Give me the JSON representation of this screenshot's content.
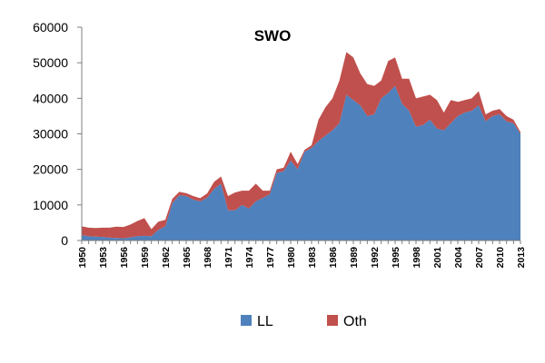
{
  "chart_data": {
    "type": "area",
    "stacked": true,
    "title": "SWO",
    "xlabel": "",
    "ylabel": "",
    "ylim": [
      0,
      60000
    ],
    "yticks": [
      0,
      10000,
      20000,
      30000,
      40000,
      50000,
      60000
    ],
    "ytick_labels": [
      "0",
      "10000",
      "20000",
      "30000",
      "40000",
      "50000",
      "60000"
    ],
    "xlim": [
      1950,
      2013
    ],
    "xticks": [
      1950,
      1953,
      1956,
      1959,
      1962,
      1965,
      1968,
      1971,
      1974,
      1977,
      1980,
      1983,
      1986,
      1989,
      1992,
      1995,
      1998,
      2001,
      2004,
      2007,
      2010,
      2013
    ],
    "xtick_labels": [
      "1950",
      "1953",
      "1956",
      "1959",
      "1962",
      "1965",
      "1968",
      "1971",
      "1974",
      "1977",
      "1980",
      "1983",
      "1986",
      "1989",
      "1992",
      "1995",
      "1998",
      "2001",
      "2004",
      "2007",
      "2010",
      "2013"
    ],
    "grid": false,
    "legend_position": "bottom",
    "x": [
      1950,
      1951,
      1952,
      1953,
      1954,
      1955,
      1956,
      1957,
      1958,
      1959,
      1960,
      1961,
      1962,
      1963,
      1964,
      1965,
      1966,
      1967,
      1968,
      1969,
      1970,
      1971,
      1972,
      1973,
      1974,
      1975,
      1976,
      1977,
      1978,
      1979,
      1980,
      1981,
      1982,
      1983,
      1984,
      1985,
      1986,
      1987,
      1988,
      1989,
      1990,
      1991,
      1992,
      1993,
      1994,
      1995,
      1996,
      1997,
      1998,
      1999,
      2000,
      2001,
      2002,
      2003,
      2004,
      2005,
      2006,
      2007,
      2008,
      2009,
      2010,
      2011,
      2012,
      2013
    ],
    "series": [
      {
        "name": "LL",
        "color": "#4f81bd",
        "values": [
          1500,
          1200,
          1100,
          1000,
          800,
          700,
          600,
          900,
          1200,
          1300,
          1200,
          3000,
          4000,
          10500,
          12700,
          12500,
          11500,
          11000,
          12000,
          14500,
          16000,
          8500,
          8500,
          10000,
          9000,
          11000,
          12000,
          13000,
          19000,
          19500,
          22500,
          20000,
          25000,
          26000,
          28000,
          29500,
          31000,
          33000,
          41000,
          39500,
          38000,
          35000,
          35500,
          40000,
          41500,
          43500,
          38500,
          36500,
          32000,
          32500,
          34000,
          31500,
          31000,
          33000,
          35000,
          36000,
          36500,
          38000,
          33500,
          35000,
          35500,
          33500,
          33000,
          30000
        ]
      },
      {
        "name": "Oth",
        "color": "#c0504d",
        "values": [
          2500,
          2400,
          2400,
          2600,
          2800,
          3200,
          3200,
          3600,
          4300,
          5000,
          2000,
          2300,
          1800,
          1200,
          1000,
          800,
          1000,
          900,
          1200,
          2000,
          2000,
          4000,
          5000,
          4000,
          5000,
          5000,
          2000,
          1000,
          1000,
          1000,
          2500,
          1500,
          500,
          800,
          6000,
          8000,
          9000,
          12000,
          12000,
          12000,
          9000,
          9000,
          8000,
          5000,
          9000,
          8000,
          7000,
          9000,
          8000,
          8000,
          7000,
          8000,
          5000,
          6500,
          4000,
          3500,
          3500,
          4000,
          2000,
          1500,
          1500,
          1500,
          1000,
          500
        ]
      }
    ]
  }
}
